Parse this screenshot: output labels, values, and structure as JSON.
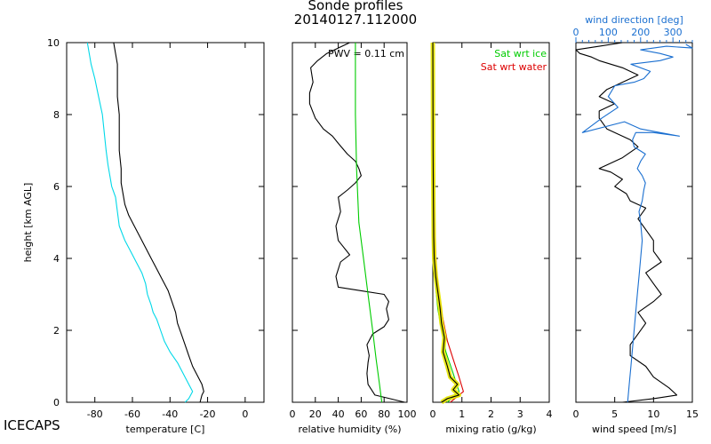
{
  "header": {
    "title": "Sonde profiles",
    "subtitle": "20140127.112000"
  },
  "footer": {
    "label": "ICECAPS"
  },
  "colors": {
    "temperature": "#000000",
    "dewpoint": "#00d8e8",
    "rh": "#000000",
    "sat_wrt_ice": "#00cc00",
    "sat_wrt_water": "#dd0000",
    "mixing_ratio": "#000000",
    "mixing_ratio_band": "#e6e600",
    "wind_speed": "#000000",
    "wind_direction": "#1a6fd0"
  },
  "chart_data": [
    {
      "type": "line",
      "id": "temperature",
      "xlabel": "temperature [C]",
      "ylabel": "height [km AGL]",
      "xlim": [
        -95,
        10
      ],
      "ylim": [
        0,
        10
      ],
      "xticks": [
        -80,
        -60,
        -40,
        -20,
        0
      ],
      "xtick_labels": [
        "-80",
        "-60",
        "-40",
        "-20",
        "0"
      ],
      "yticks": [
        0,
        2,
        4,
        6,
        8,
        10
      ],
      "ytick_labels": [
        "0",
        "2",
        "4",
        "6",
        "8",
        "10"
      ],
      "series": [
        {
          "color_key": "temperature",
          "x": [
            -24,
            -23,
            -22,
            -23,
            -26,
            -28,
            -30,
            -32,
            -34,
            -36,
            -37,
            -39,
            -41,
            -44,
            -47,
            -50,
            -53,
            -56,
            -59,
            -62,
            -64,
            -65,
            -66,
            -66,
            -67,
            -67,
            -67,
            -68,
            -68,
            -68,
            -69,
            -70
          ],
          "y": [
            0.0,
            0.2,
            0.3,
            0.5,
            0.8,
            1.0,
            1.3,
            1.6,
            1.9,
            2.2,
            2.5,
            2.8,
            3.1,
            3.4,
            3.7,
            4.0,
            4.3,
            4.6,
            4.9,
            5.2,
            5.5,
            5.8,
            6.1,
            6.5,
            7.0,
            7.5,
            8.0,
            8.5,
            9.0,
            9.4,
            9.7,
            10.0
          ]
        },
        {
          "color_key": "dewpoint",
          "x": [
            -32,
            -30,
            -28,
            -30,
            -33,
            -36,
            -40,
            -43,
            -45,
            -47,
            -49,
            -50,
            -52,
            -53,
            -55,
            -58,
            -61,
            -64,
            -67,
            -68,
            -69,
            -71,
            -72,
            -73,
            -74,
            -75,
            -76,
            -78,
            -80,
            -82,
            -83,
            -84
          ],
          "y": [
            0.0,
            0.1,
            0.3,
            0.5,
            0.8,
            1.1,
            1.4,
            1.7,
            2.0,
            2.3,
            2.5,
            2.7,
            3.0,
            3.3,
            3.6,
            3.9,
            4.2,
            4.5,
            4.9,
            5.3,
            5.7,
            6.0,
            6.3,
            6.6,
            7.0,
            7.5,
            8.0,
            8.5,
            9.0,
            9.4,
            9.7,
            10.0
          ]
        }
      ]
    },
    {
      "type": "line",
      "id": "rh",
      "xlabel": "relative humidity (%)",
      "ylabel": "",
      "xlim": [
        0,
        100
      ],
      "ylim": [
        0,
        10
      ],
      "xticks": [
        0,
        20,
        40,
        60,
        80,
        100
      ],
      "xtick_labels": [
        "0",
        "20",
        "40",
        "60",
        "80",
        "100"
      ],
      "yticks": [
        0,
        2,
        4,
        6,
        8,
        10
      ],
      "annotation": "PWV = 0.11 cm",
      "series": [
        {
          "color_key": "rh",
          "x": [
            98,
            85,
            72,
            66,
            65,
            66,
            67,
            65,
            70,
            80,
            84,
            82,
            84,
            80,
            60,
            40,
            38,
            42,
            50,
            40,
            38,
            42,
            40,
            48,
            55,
            60,
            58,
            55,
            48,
            40,
            35,
            27,
            20,
            15,
            15,
            18,
            17,
            16,
            22,
            30,
            40,
            50
          ],
          "y": [
            0.0,
            0.1,
            0.2,
            0.5,
            0.8,
            1.1,
            1.3,
            1.6,
            1.9,
            2.1,
            2.3,
            2.6,
            2.8,
            3.0,
            3.1,
            3.2,
            3.5,
            3.9,
            4.1,
            4.5,
            4.9,
            5.3,
            5.7,
            5.9,
            6.1,
            6.3,
            6.5,
            6.7,
            6.9,
            7.2,
            7.4,
            7.6,
            7.9,
            8.3,
            8.6,
            8.9,
            9.1,
            9.3,
            9.5,
            9.7,
            9.85,
            10.0
          ]
        },
        {
          "color_key": "sat_wrt_ice",
          "x": [
            78,
            76,
            73,
            70,
            66,
            62,
            58,
            56,
            55,
            55
          ],
          "y": [
            0.0,
            0.5,
            1.2,
            2.0,
            3.0,
            4.0,
            5.0,
            6.5,
            8.0,
            10.0
          ]
        }
      ]
    },
    {
      "type": "line",
      "id": "mixing_ratio",
      "xlabel": "mixing ratio (g/kg)",
      "ylabel": "",
      "xlim": [
        0,
        4
      ],
      "ylim": [
        0,
        10
      ],
      "xticks": [
        0,
        1,
        2,
        3,
        4
      ],
      "xtick_labels": [
        "0",
        "1",
        "2",
        "3",
        "4"
      ],
      "yticks": [
        0,
        2,
        4,
        6,
        8,
        10
      ],
      "legend_position": "top-right",
      "series": [
        {
          "name": "Sat wrt ice",
          "color_key": "sat_wrt_ice",
          "x": [
            0.5,
            0.9,
            0.7,
            0.45,
            0.3,
            0.17,
            0.1,
            0.05,
            0.03,
            0.02,
            0.01,
            0.005,
            0.0
          ],
          "y": [
            0.0,
            0.3,
            0.8,
            1.4,
            2.0,
            2.6,
            3.2,
            4.0,
            5.0,
            6.0,
            7.5,
            9.0,
            10.0
          ]
        },
        {
          "name": "Sat wrt water",
          "color_key": "sat_wrt_water",
          "x": [
            0.6,
            1.05,
            0.9,
            0.7,
            0.5,
            0.35,
            0.2,
            0.12,
            0.07,
            0.04,
            0.02,
            0.01,
            0.0
          ],
          "y": [
            0.0,
            0.3,
            0.7,
            1.2,
            1.7,
            2.3,
            3.0,
            3.8,
            4.6,
            5.5,
            6.5,
            8.0,
            10.0
          ]
        },
        {
          "color_key": "mixing_ratio",
          "x": [
            0.3,
            0.5,
            0.9,
            0.7,
            0.85,
            0.6,
            0.5,
            0.35,
            0.4,
            0.3,
            0.25,
            0.2,
            0.15,
            0.1,
            0.05,
            0.03,
            0.02,
            0.01,
            0.0
          ],
          "y": [
            0.0,
            0.1,
            0.2,
            0.35,
            0.5,
            0.7,
            1.0,
            1.4,
            1.8,
            2.2,
            2.6,
            2.9,
            3.2,
            3.5,
            4.0,
            4.6,
            5.5,
            7.0,
            10.0
          ]
        }
      ]
    },
    {
      "type": "line",
      "id": "wind",
      "xlabel": "wind speed [m/s]",
      "ylabel": "",
      "xlim": [
        0,
        15
      ],
      "ylim": [
        0,
        10
      ],
      "xticks": [
        0,
        5,
        10,
        15
      ],
      "xtick_labels": [
        "0",
        "5",
        "10",
        "15"
      ],
      "yticks": [
        0,
        2,
        4,
        6,
        8,
        10
      ],
      "top_axis": {
        "label": "wind direction [deg]",
        "range": [
          0,
          360
        ],
        "ticks": [
          0,
          100,
          200,
          300
        ],
        "tick_labels": [
          "0",
          "100",
          "200",
          "300"
        ]
      },
      "series": [
        {
          "color_key": "wind_speed",
          "x": [
            6,
            10,
            13,
            12,
            10,
            9,
            7,
            7,
            8,
            9,
            8,
            10,
            11,
            10,
            9,
            11,
            10,
            10,
            9,
            8,
            9,
            7,
            6.5,
            5,
            6,
            4.5,
            3,
            4,
            6,
            8,
            7,
            4,
            3,
            3,
            5,
            3,
            4,
            6,
            8,
            6,
            3,
            2,
            0.5,
            0,
            3,
            6
          ],
          "y": [
            0.0,
            0.1,
            0.2,
            0.4,
            0.7,
            1.0,
            1.3,
            1.6,
            1.9,
            2.2,
            2.5,
            2.8,
            3.0,
            3.3,
            3.6,
            3.9,
            4.2,
            4.5,
            4.8,
            5.1,
            5.4,
            5.6,
            5.8,
            6.0,
            6.2,
            6.4,
            6.5,
            6.6,
            6.8,
            7.1,
            7.3,
            7.6,
            7.9,
            8.1,
            8.3,
            8.5,
            8.7,
            8.9,
            9.1,
            9.3,
            9.5,
            9.6,
            9.7,
            9.8,
            9.9,
            10.0
          ]
        },
        {
          "color_key": "wind_direction",
          "axis": "top",
          "x": [
            160,
            165,
            170,
            175,
            180,
            185,
            190,
            195,
            200,
            205,
            200,
            195,
            205,
            210,
            215,
            205,
            190,
            200,
            215,
            180,
            175,
            185,
            240,
            320,
            200,
            150,
            20,
            80,
            130,
            100,
            120,
            180,
            210,
            230,
            170,
            260,
            300,
            260,
            200,
            280,
            360,
            340
          ],
          "y": [
            0.0,
            0.5,
            1.0,
            1.5,
            2.0,
            2.5,
            3.0,
            3.5,
            4.0,
            4.5,
            5.0,
            5.3,
            5.6,
            5.9,
            6.1,
            6.3,
            6.5,
            6.7,
            6.9,
            7.1,
            7.3,
            7.5,
            7.5,
            7.4,
            7.6,
            7.8,
            7.5,
            7.9,
            8.2,
            8.5,
            8.8,
            8.9,
            9.0,
            9.2,
            9.4,
            9.5,
            9.6,
            9.7,
            9.8,
            9.9,
            9.85,
            9.95
          ]
        }
      ]
    }
  ]
}
